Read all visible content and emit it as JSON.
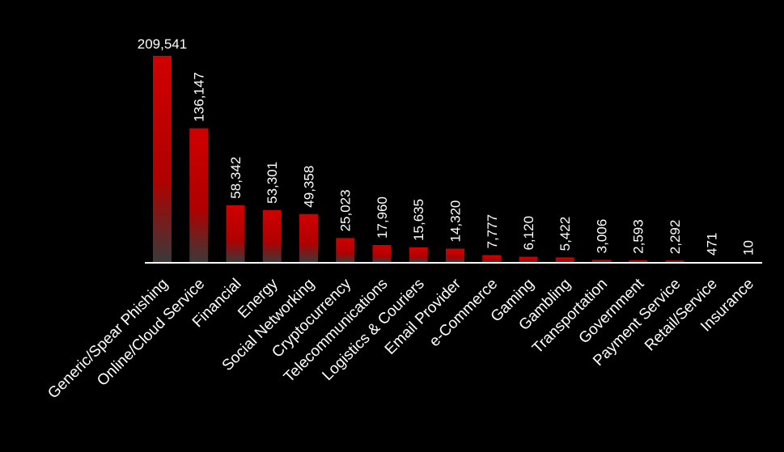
{
  "chart_data": {
    "type": "bar",
    "title": "",
    "xlabel": "",
    "ylabel": "",
    "ylim": [
      0,
      209541
    ],
    "grid": false,
    "legend": "none",
    "categories": [
      "Generic/Spear Phishing",
      "Online/Cloud Service",
      "Financial",
      "Energy",
      "Social Networking",
      "Cryptocurrency",
      "Telecommunications",
      "Logistics & Couriers",
      "Email Provider",
      "e-Commerce",
      "Gaming",
      "Gambling",
      "Transportation",
      "Government",
      "Payment Service",
      "Retail/Service",
      "Insurance"
    ],
    "values": [
      209541,
      136147,
      58342,
      53301,
      49358,
      25023,
      17960,
      15635,
      14320,
      7777,
      6120,
      5422,
      3006,
      2593,
      2292,
      471,
      10
    ],
    "value_labels": [
      "209,541",
      "136,147",
      "58,342",
      "53,301",
      "49,358",
      "25,023",
      "17,960",
      "15,635",
      "14,320",
      "7,777",
      "6,120",
      "5,422",
      "3,006",
      "2,593",
      "2,292",
      "471",
      "10"
    ],
    "colors": {
      "background": "#000000",
      "bar_top": "#d00000",
      "bar_bottom": "#3a3a3a",
      "axis": "#ffffff",
      "text": "#ffffff"
    }
  }
}
